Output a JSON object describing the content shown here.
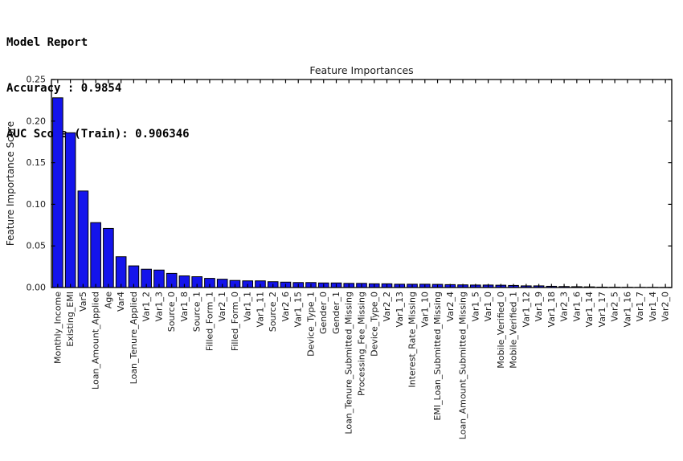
{
  "report": {
    "line1": "Model Report",
    "line2": "Accuracy : 0.9854",
    "line3": "AUC Score (Train): 0.906346"
  },
  "chart_data": {
    "type": "bar",
    "title": "Feature Importances",
    "xlabel": "",
    "ylabel": "Feature Importance Score",
    "ylim": [
      0,
      0.25
    ],
    "yticks": [
      0,
      0.05,
      0.1,
      0.15,
      0.2,
      0.25
    ],
    "ytick_labels": [
      "0.00",
      "0.05",
      "0.10",
      "0.15",
      "0.20",
      "0.25"
    ],
    "grid": false,
    "legend_position": "none",
    "bar_color": "#1414ec",
    "bar_edge_color": "#000000",
    "axis_color": "#000000",
    "text_color": "#1a1a1a",
    "categories": [
      "Monthly_Income",
      "Existing_EMI",
      "Var5",
      "Loan_Amount_Applied",
      "Age",
      "Var4",
      "Loan_Tenure_Applied",
      "Var1_2",
      "Var1_3",
      "Source_0",
      "Var1_8",
      "Source_1",
      "Filled_Form_1",
      "Var2_1",
      "Filled_Form_0",
      "Var1_1",
      "Var1_11",
      "Source_2",
      "Var2_6",
      "Var1_15",
      "Device_Type_1",
      "Gender_0",
      "Gender_1",
      "Loan_Tenure_Submitted_Missing",
      "Processing_Fee_Missing",
      "Device_Type_0",
      "Var2_2",
      "Var1_13",
      "Interest_Rate_Missing",
      "Var1_10",
      "EMI_Loan_Submitted_Missing",
      "Var2_4",
      "Loan_Amount_Submitted_Missing",
      "Var1_5",
      "Var1_0",
      "Mobile_Verified_0",
      "Mobile_Verified_1",
      "Var1_12",
      "Var1_9",
      "Var1_18",
      "Var2_3",
      "Var1_6",
      "Var1_14",
      "Var1_17",
      "Var2_5",
      "Var1_16",
      "Var1_7",
      "Var1_4",
      "Var2_0"
    ],
    "values": [
      0.228,
      0.186,
      0.116,
      0.078,
      0.071,
      0.037,
      0.026,
      0.022,
      0.021,
      0.017,
      0.014,
      0.013,
      0.011,
      0.01,
      0.0085,
      0.008,
      0.008,
      0.007,
      0.0065,
      0.006,
      0.006,
      0.0055,
      0.0055,
      0.005,
      0.005,
      0.0045,
      0.0045,
      0.004,
      0.004,
      0.004,
      0.0038,
      0.0035,
      0.0032,
      0.003,
      0.003,
      0.0028,
      0.0025,
      0.002,
      0.002,
      0.0015,
      0.0012,
      0.001,
      0.0008,
      0.0005,
      0.0004,
      0.0003,
      0.0002,
      0.0002,
      0.0001
    ]
  }
}
